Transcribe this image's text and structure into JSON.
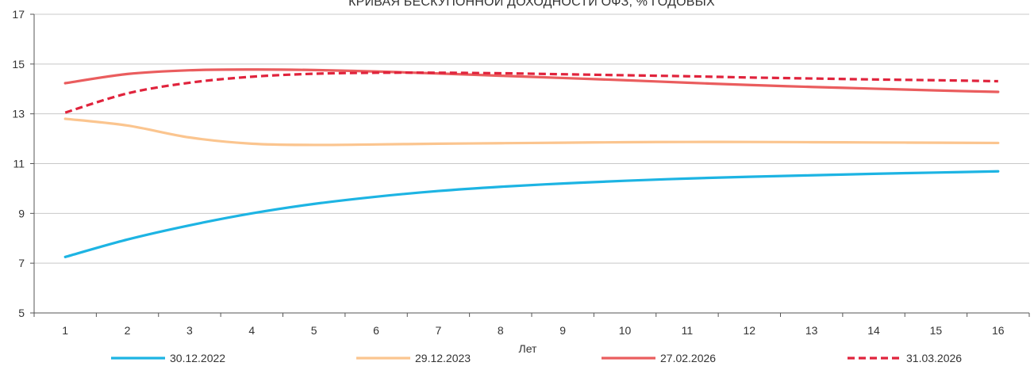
{
  "chart_data": {
    "type": "line",
    "title": "КРИВАЯ БЕСКУПОННОЙ ДОХОДНОСТИ ОФЗ, % ГОДОВЫХ",
    "xlabel": "Лет",
    "ylabel": "",
    "x": [
      1,
      2,
      3,
      4,
      5,
      6,
      7,
      8,
      9,
      10,
      11,
      12,
      13,
      14,
      15,
      16
    ],
    "ylim": [
      5,
      17
    ],
    "yticks": [
      5,
      7,
      9,
      11,
      13,
      15,
      17
    ],
    "grid": true,
    "legend_position": "bottom",
    "series": [
      {
        "name": "30.12.2022",
        "color": "#1db4e3",
        "style": "solid",
        "values": [
          7.25,
          7.95,
          8.52,
          9.0,
          9.38,
          9.67,
          9.9,
          10.07,
          10.2,
          10.31,
          10.4,
          10.47,
          10.53,
          10.59,
          10.64,
          10.69
        ]
      },
      {
        "name": "29.12.2023",
        "color": "#fbc58f",
        "style": "solid",
        "values": [
          12.8,
          12.53,
          12.05,
          11.8,
          11.75,
          11.77,
          11.8,
          11.82,
          11.84,
          11.86,
          11.87,
          11.87,
          11.86,
          11.85,
          11.84,
          11.83
        ]
      },
      {
        "name": "27.02.2026",
        "color": "#ea5d5e",
        "style": "solid",
        "values": [
          14.23,
          14.6,
          14.75,
          14.78,
          14.76,
          14.7,
          14.62,
          14.53,
          14.44,
          14.35,
          14.25,
          14.16,
          14.08,
          14.01,
          13.94,
          13.88
        ]
      },
      {
        "name": "31.03.2026",
        "color": "#e0233c",
        "style": "dashed",
        "values": [
          13.05,
          13.82,
          14.25,
          14.49,
          14.61,
          14.65,
          14.65,
          14.63,
          14.59,
          14.55,
          14.51,
          14.46,
          14.42,
          14.38,
          14.35,
          14.31
        ]
      }
    ]
  }
}
